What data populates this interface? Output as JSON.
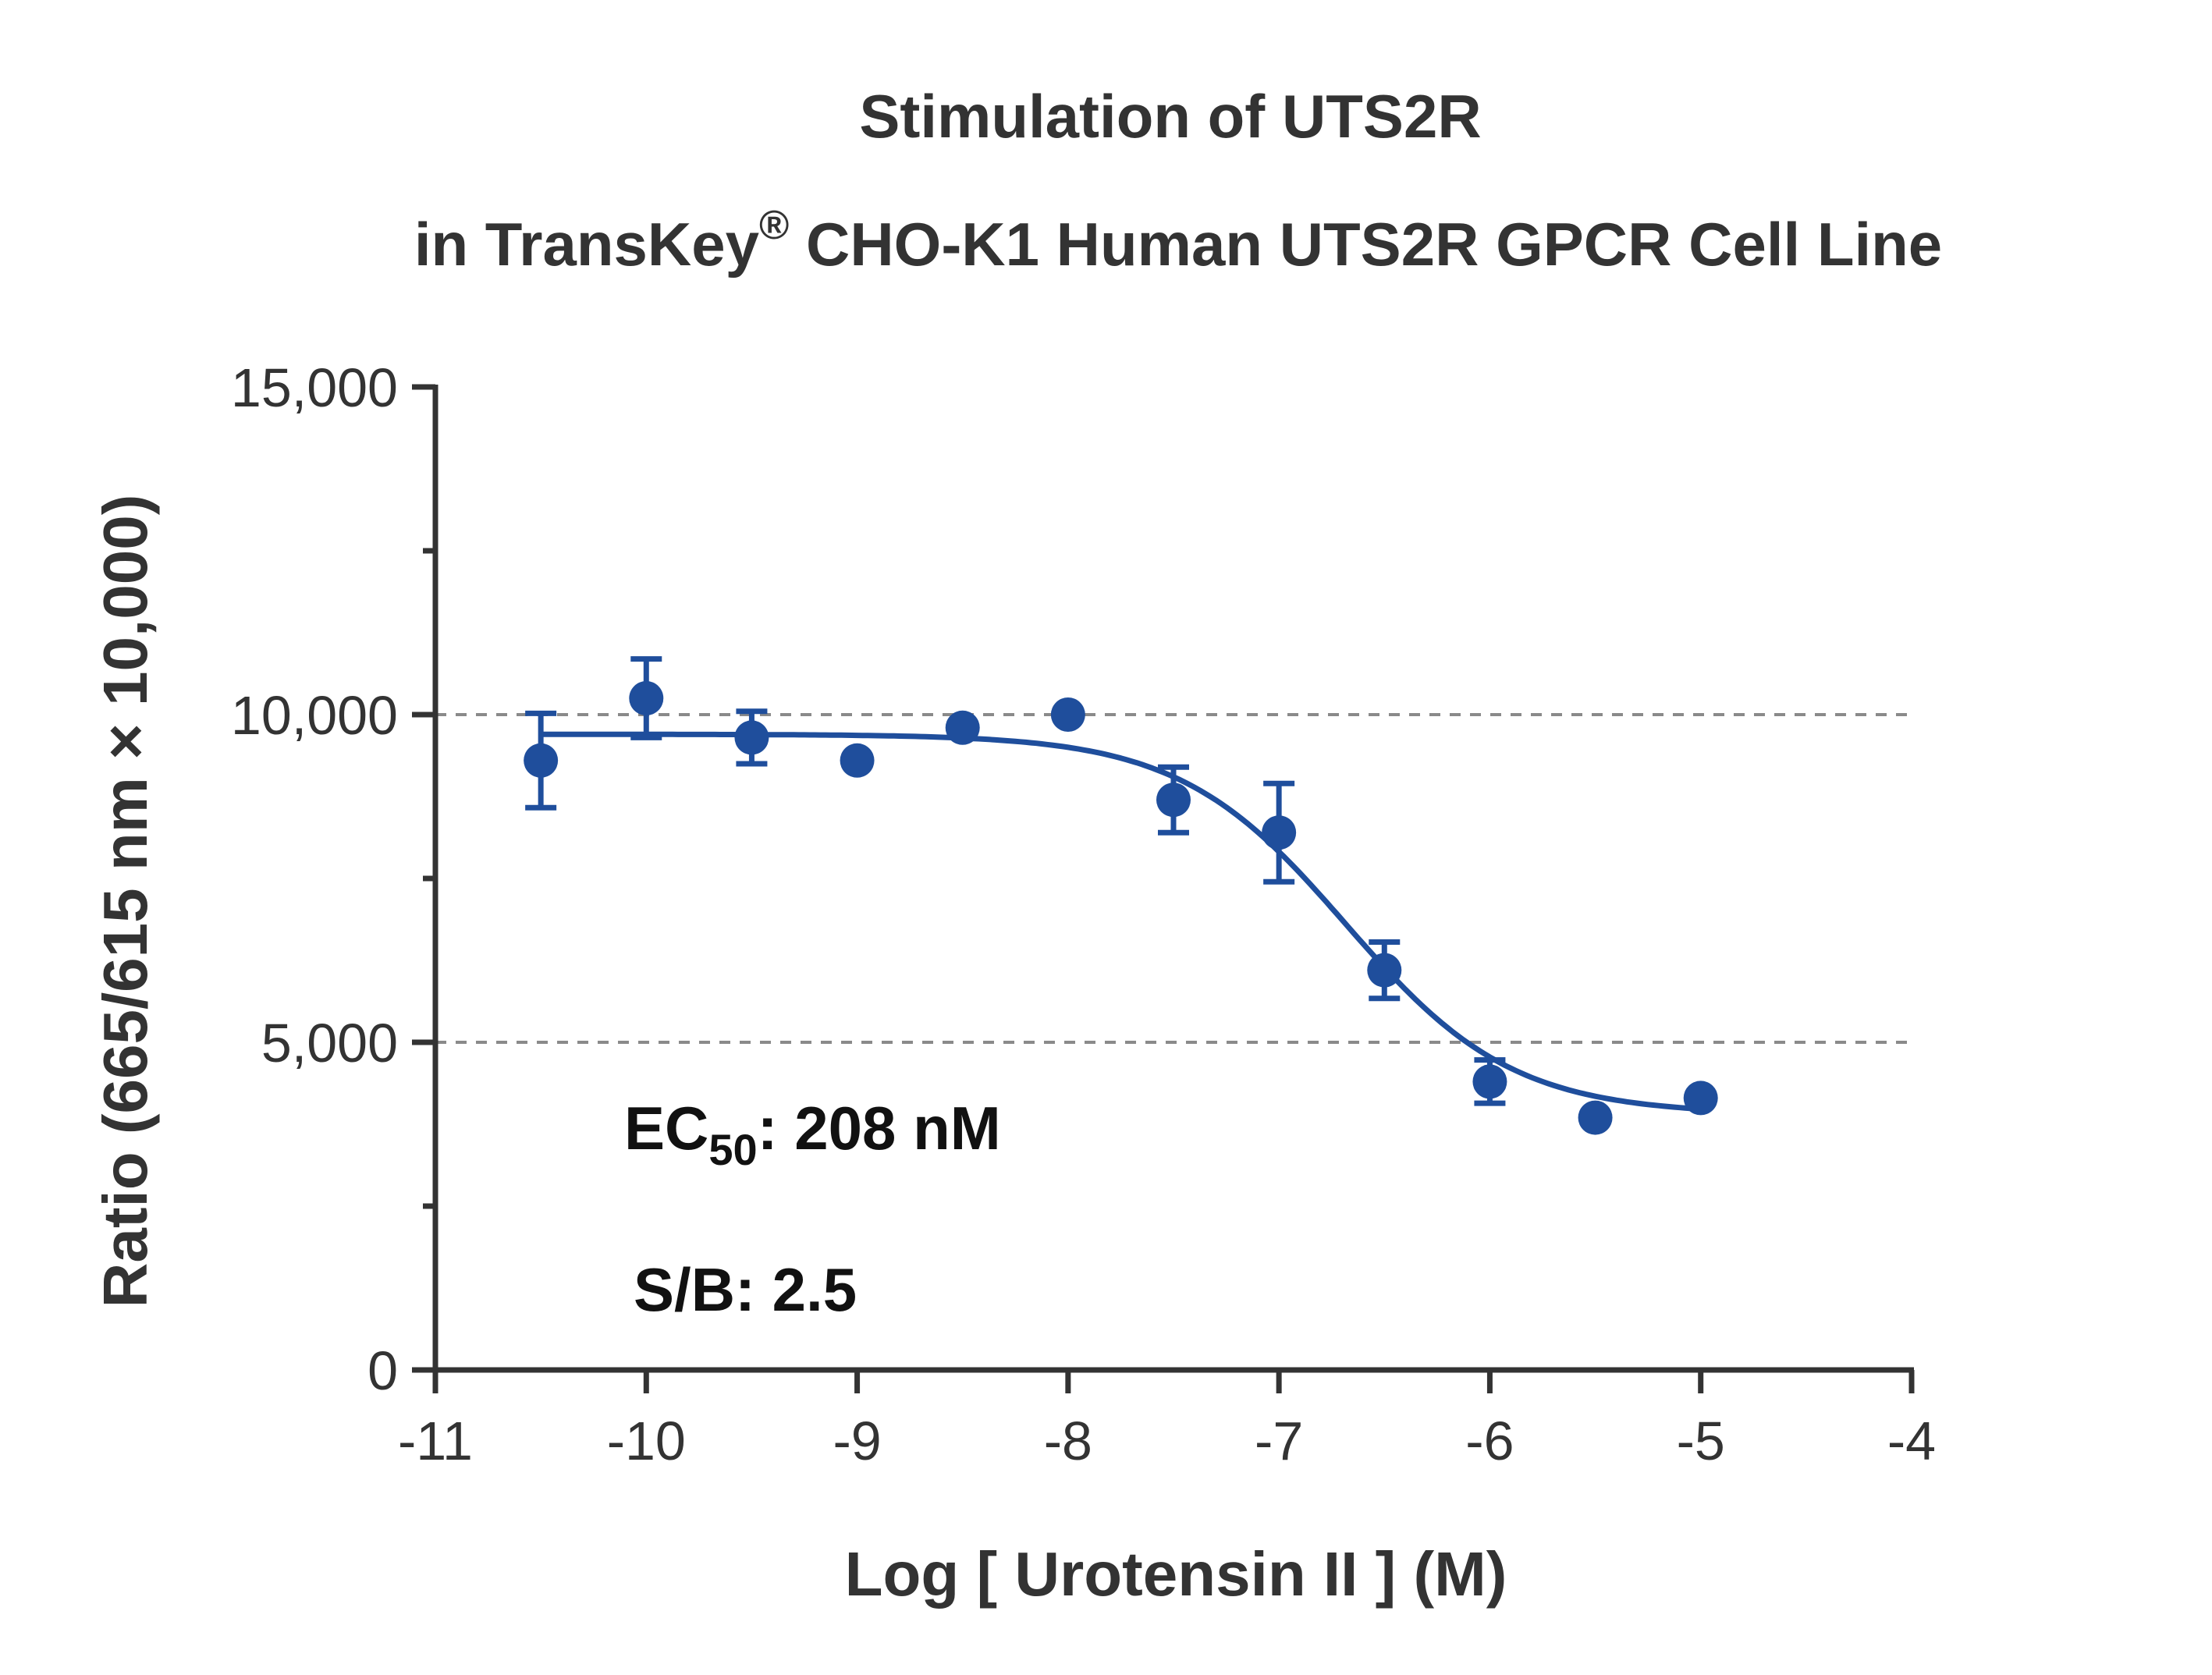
{
  "chart_data": {
    "type": "scatter",
    "title_line1": "Stimulation of  UTS2R",
    "title_line2_prefix": "in TransKey",
    "title_line2_sup": "®",
    "title_line2_suffix": " CHO-K1 Human UTS2R GPCR Cell Line",
    "xlabel": "Log [ Urotensin II ]  (M)",
    "ylabel": "Ratio (665/615 nm × 10,000)",
    "xlim": [
      -11,
      -4
    ],
    "ylim": [
      0,
      15000
    ],
    "x_ticks": [
      -11,
      -10,
      -9,
      -8,
      -7,
      -6,
      -5,
      -4
    ],
    "x_tick_labels": [
      "-11",
      "-10",
      "-9",
      "-8",
      "-7",
      "-6",
      "-5",
      "-4"
    ],
    "y_ticks": [
      0,
      5000,
      10000,
      15000
    ],
    "y_tick_labels": [
      "0",
      "5,000",
      "10,000",
      "15,000"
    ],
    "y_minor_ticks": [
      2500,
      7500,
      12500
    ],
    "gridlines_y": [
      5000,
      10000
    ],
    "series": [
      {
        "color": "#1f4e9c",
        "points": [
          {
            "x": -10.5,
            "y": 9300,
            "err": 720
          },
          {
            "x": -10.0,
            "y": 10250,
            "err": 600
          },
          {
            "x": -9.5,
            "y": 9650,
            "err": 400
          },
          {
            "x": -9.0,
            "y": 9300,
            "err": 0
          },
          {
            "x": -8.5,
            "y": 9800,
            "err": 0
          },
          {
            "x": -8.0,
            "y": 10000,
            "err": 0
          },
          {
            "x": -7.5,
            "y": 8700,
            "err": 500
          },
          {
            "x": -7.0,
            "y": 8200,
            "err": 750
          },
          {
            "x": -6.5,
            "y": 6100,
            "err": 430
          },
          {
            "x": -6.0,
            "y": 4400,
            "err": 330
          },
          {
            "x": -5.5,
            "y": 3850,
            "err": 0
          },
          {
            "x": -5.0,
            "y": 4150,
            "err": 0
          }
        ],
        "fit": {
          "model": "four-parameter logistic",
          "top": 9700,
          "bottom": 3900,
          "log_ec50": -6.682,
          "hill": -1.1,
          "x_range": [
            -10.5,
            -5.0
          ]
        }
      }
    ],
    "annotations": {
      "ec50_prefix": "EC",
      "ec50_sub": "50",
      "ec50_suffix": ": 208 nM",
      "sb": "S/B: 2.5"
    }
  }
}
